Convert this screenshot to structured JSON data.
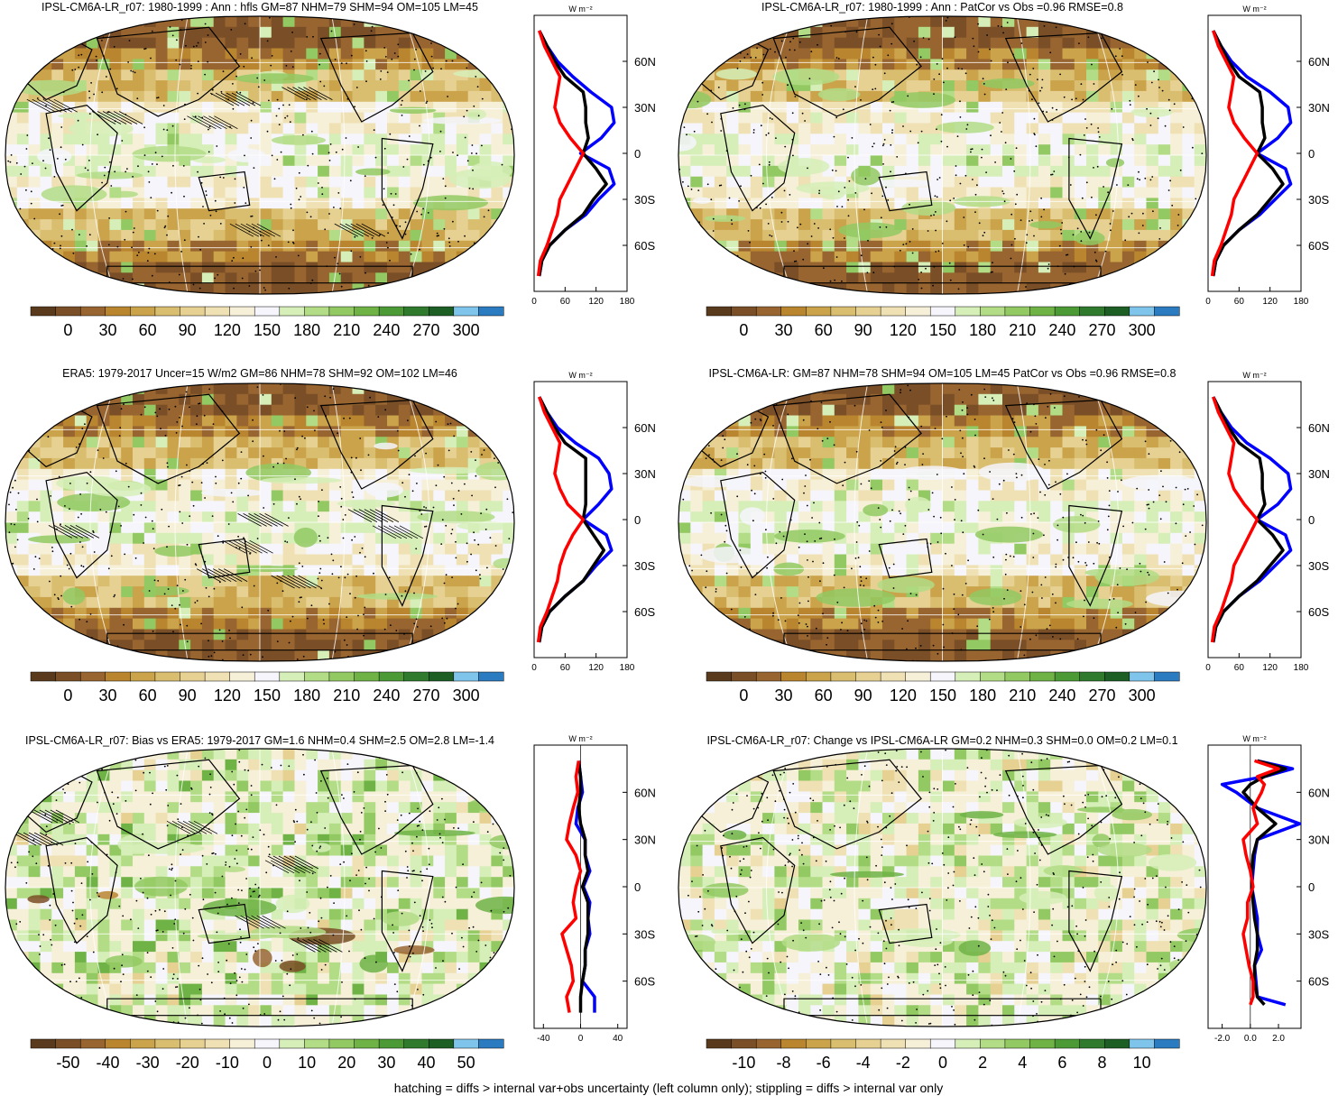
{
  "palette_main": [
    "#5a3a1c",
    "#7a4e26",
    "#986530",
    "#b9852f",
    "#caa34a",
    "#d9be70",
    "#e6d193",
    "#efe1b3",
    "#f7f0d8",
    "#f5f5fb",
    "#d6eeb8",
    "#b2dc85",
    "#92c962",
    "#6fb346",
    "#4c9a35",
    "#2f7a2c",
    "#1d5e25",
    "#7fc4ea",
    "#2b7bc0"
  ],
  "colors": {
    "nh_line": "#0000ff",
    "sh_line": "#ff0000",
    "gm_line": "#000000",
    "land_outline": "#000000",
    "grid_line": "#ffffff",
    "background": "#ffffff"
  },
  "panels": [
    {
      "title": "IPSL-CM6A-LR_r07: 1980-1999 : Ann : hfls GM=87 NHM=79 SHM=94 OM=105 LM=45",
      "colorbar": {
        "ticks": [
          "0",
          "30",
          "60",
          "90",
          "120",
          "150",
          "180",
          "210",
          "240",
          "270",
          "300"
        ]
      },
      "profile": {
        "unit": "W m⁻²",
        "xticks": [
          "0",
          "60",
          "120",
          "180"
        ],
        "xlim": [
          0,
          180
        ],
        "yticks": [
          "60N",
          "30N",
          "0",
          "30S",
          "60S"
        ]
      },
      "hatched": true,
      "mode": "abs",
      "variant": 0
    },
    {
      "title": "IPSL-CM6A-LR_r07: 1980-1999 : Ann : PatCor vs Obs =0.96 RMSE=0.8",
      "colorbar": {
        "ticks": [
          "0",
          "30",
          "60",
          "90",
          "120",
          "150",
          "180",
          "210",
          "240",
          "270",
          "300"
        ]
      },
      "profile": {
        "unit": "W m⁻²",
        "xticks": [
          "0",
          "60",
          "120",
          "180"
        ],
        "xlim": [
          0,
          180
        ],
        "yticks": [
          "60N",
          "30N",
          "0",
          "30S",
          "60S"
        ]
      },
      "hatched": false,
      "mode": "abs",
      "variant": 1
    },
    {
      "title": "ERA5: 1979-2017 Uncer=15 W/m2 GM=86 NHM=78 SHM=92 OM=102 LM=46",
      "colorbar": {
        "ticks": [
          "0",
          "30",
          "60",
          "90",
          "120",
          "150",
          "180",
          "210",
          "240",
          "270",
          "300"
        ]
      },
      "profile": {
        "unit": "W m⁻²",
        "xticks": [
          "0",
          "60",
          "120",
          "180"
        ],
        "xlim": [
          0,
          180
        ],
        "yticks": [
          "60N",
          "30N",
          "0",
          "30S",
          "60S"
        ]
      },
      "hatched": true,
      "mode": "abs",
      "variant": 2
    },
    {
      "title": "IPSL-CM6A-LR: GM=87 NHM=78 SHM=94 OM=105 LM=45 PatCor vs Obs =0.96 RMSE=0.8",
      "colorbar": {
        "ticks": [
          "0",
          "30",
          "60",
          "90",
          "120",
          "150",
          "180",
          "210",
          "240",
          "270",
          "300"
        ]
      },
      "profile": {
        "unit": "W m⁻²",
        "xticks": [
          "0",
          "60",
          "120",
          "180"
        ],
        "xlim": [
          0,
          180
        ],
        "yticks": [
          "60N",
          "30N",
          "0",
          "30S",
          "60S"
        ]
      },
      "hatched": false,
      "mode": "abs",
      "variant": 3
    },
    {
      "title": "IPSL-CM6A-LR_r07: Bias vs ERA5: 1979-2017 GM=1.6 NHM=0.4 SHM=2.5 OM=2.8 LM=-1.4",
      "colorbar": {
        "ticks": [
          "-50",
          "-40",
          "-30",
          "-20",
          "-10",
          "0",
          "10",
          "20",
          "30",
          "40",
          "50"
        ]
      },
      "profile": {
        "unit": "W m⁻²",
        "xticks": [
          "-40",
          "0",
          "40"
        ],
        "xlim": [
          -50,
          50
        ],
        "yticks": [
          "60N",
          "30N",
          "0",
          "30S",
          "60S"
        ]
      },
      "hatched": true,
      "mode": "bias",
      "variant": 4
    },
    {
      "title": "IPSL-CM6A-LR_r07: Change vs IPSL-CM6A-LR GM=0.2 NHM=0.3 SHM=0.0 OM=0.2 LM=0.1",
      "colorbar": {
        "ticks": [
          "-10",
          "-8",
          "-6",
          "-4",
          "-2",
          "0",
          "2",
          "4",
          "6",
          "8",
          "10"
        ]
      },
      "profile": {
        "unit": "W m⁻²",
        "xticks": [
          "-2.0",
          "0.0",
          "2.0"
        ],
        "xlim": [
          -3,
          3.6
        ],
        "yticks": [
          "60N",
          "30N",
          "0",
          "30S",
          "60S"
        ]
      },
      "hatched": false,
      "mode": "change",
      "variant": 5
    }
  ],
  "footer": "hatching = diffs > internal var+obs uncertainty (left column only); stippling = diffs > internal var only",
  "chart_data": [
    {
      "type": "heatmap",
      "title": "IPSL-CM6A-LR_r07: 1980-1999 : Ann : hfls GM=87 NHM=79 SHM=94 OM=105 LM=45",
      "projection": "robinson",
      "clim": [
        0,
        300
      ],
      "zonal_profile": {
        "type": "line",
        "unit": "W m-2",
        "xlim": [
          0,
          180
        ],
        "lat": [
          80,
          70,
          60,
          50,
          40,
          30,
          20,
          10,
          0,
          -10,
          -20,
          -30,
          -40,
          -50,
          -60,
          -70,
          -80
        ],
        "series": [
          {
            "values": [
              10,
              25,
              45,
              75,
              110,
              150,
              155,
              130,
              90,
              145,
              155,
              125,
              100,
              60,
              30,
              15,
              10
            ]
          },
          {
            "values": [
              10,
              25,
              40,
              60,
              95,
              100,
              100,
              105,
              95,
              120,
              140,
              115,
              95,
              60,
              30,
              15,
              10
            ]
          },
          {
            "values": [
              10,
              20,
              35,
              50,
              45,
              40,
              50,
              70,
              95,
              80,
              65,
              50,
              45,
              35,
              25,
              12,
              8
            ]
          }
        ]
      }
    },
    {
      "type": "heatmap",
      "title": "IPSL-CM6A-LR_r07: 1980-1999 : Ann : PatCor vs Obs =0.96 RMSE=0.8",
      "projection": "robinson",
      "clim": [
        0,
        300
      ],
      "zonal_profile": {
        "type": "line",
        "unit": "W m-2",
        "xlim": [
          0,
          180
        ],
        "lat": [
          80,
          70,
          60,
          50,
          40,
          30,
          20,
          10,
          0,
          -10,
          -20,
          -30,
          -40,
          -50,
          -60,
          -70,
          -80
        ],
        "series": [
          {
            "values": [
              10,
              25,
              45,
              75,
              120,
              155,
              160,
              135,
              95,
              150,
              160,
              130,
              100,
              60,
              30,
              15,
              10
            ]
          },
          {
            "values": [
              10,
              25,
              40,
              60,
              100,
              105,
              105,
              110,
              95,
              125,
              145,
              120,
              95,
              60,
              30,
              15,
              10
            ]
          },
          {
            "values": [
              10,
              20,
              35,
              50,
              45,
              40,
              50,
              70,
              95,
              80,
              65,
              50,
              45,
              35,
              25,
              12,
              8
            ]
          }
        ]
      }
    },
    {
      "type": "heatmap",
      "title": "ERA5: 1979-2017 Uncer=15 W/m2 GM=86 NHM=78 SHM=92 OM=102 LM=46",
      "projection": "robinson",
      "clim": [
        0,
        300
      ],
      "zonal_profile": {
        "type": "line",
        "unit": "W m-2",
        "xlim": [
          0,
          180
        ],
        "lat": [
          80,
          70,
          60,
          50,
          40,
          30,
          20,
          10,
          0,
          -10,
          -20,
          -30,
          -40,
          -50,
          -60,
          -70,
          -80
        ],
        "series": [
          {
            "values": [
              10,
              25,
              45,
              80,
              125,
              145,
              150,
              125,
              95,
              140,
              150,
              120,
              95,
              60,
              30,
              15,
              10
            ]
          },
          {
            "values": [
              10,
              25,
              40,
              60,
              100,
              100,
              100,
              100,
              95,
              115,
              135,
              115,
              95,
              60,
              30,
              15,
              10
            ]
          },
          {
            "values": [
              10,
              20,
              35,
              50,
              45,
              40,
              50,
              65,
              95,
              75,
              60,
              50,
              45,
              35,
              25,
              12,
              8
            ]
          }
        ]
      }
    },
    {
      "type": "heatmap",
      "title": "IPSL-CM6A-LR: GM=87 NHM=78 SHM=94 OM=105 LM=45 PatCor vs Obs =0.96 RMSE=0.8",
      "projection": "robinson",
      "clim": [
        0,
        300
      ],
      "zonal_profile": {
        "type": "line",
        "unit": "W m-2",
        "xlim": [
          0,
          180
        ],
        "lat": [
          80,
          70,
          60,
          50,
          40,
          30,
          20,
          10,
          0,
          -10,
          -20,
          -30,
          -40,
          -50,
          -60,
          -70,
          -80
        ],
        "series": [
          {
            "values": [
              10,
              25,
              45,
              75,
              120,
              155,
              160,
              135,
              95,
              150,
              160,
              130,
              100,
              60,
              30,
              15,
              10
            ]
          },
          {
            "values": [
              10,
              25,
              40,
              60,
              100,
              105,
              105,
              110,
              95,
              125,
              145,
              120,
              95,
              60,
              30,
              15,
              10
            ]
          },
          {
            "values": [
              10,
              20,
              35,
              50,
              45,
              40,
              50,
              70,
              95,
              80,
              65,
              50,
              45,
              35,
              25,
              12,
              8
            ]
          }
        ]
      }
    },
    {
      "type": "heatmap",
      "title": "IPSL-CM6A-LR_r07: Bias vs ERA5: 1979-2017 GM=1.6 NHM=0.4 SHM=2.5 OM=2.8 LM=-1.4",
      "projection": "robinson",
      "clim": [
        -50,
        50
      ],
      "zonal_profile": {
        "type": "line",
        "unit": "W m-2",
        "xlim": [
          -50,
          50
        ],
        "lat": [
          80,
          70,
          60,
          50,
          40,
          30,
          20,
          10,
          0,
          -10,
          -20,
          -30,
          -40,
          -50,
          -60,
          -70,
          -80
        ],
        "series": [
          {
            "values": [
              -2,
              0,
              2,
              -3,
              -5,
              5,
              5,
              10,
              3,
              10,
              8,
              10,
              5,
              5,
              2,
              15,
              15
            ]
          },
          {
            "values": [
              -2,
              0,
              0,
              -2,
              0,
              5,
              5,
              8,
              2,
              8,
              8,
              8,
              5,
              5,
              2,
              0,
              0
            ]
          },
          {
            "values": [
              -2,
              -5,
              -3,
              -8,
              -12,
              -15,
              -5,
              0,
              -5,
              -8,
              -5,
              -20,
              -15,
              -10,
              -8,
              -15,
              -12
            ]
          }
        ]
      }
    },
    {
      "type": "heatmap",
      "title": "IPSL-CM6A-LR_r07: Change vs IPSL-CM6A-LR GM=0.2 NHM=0.3 SHM=0.0 OM=0.2 LM=0.1",
      "projection": "robinson",
      "clim": [
        -10,
        10
      ],
      "zonal_profile": {
        "type": "line",
        "unit": "W m-2",
        "xlim": [
          -3,
          3.6
        ],
        "lat": [
          80,
          75,
          70,
          65,
          60,
          50,
          40,
          30,
          20,
          10,
          0,
          -10,
          -20,
          -30,
          -40,
          -50,
          -60,
          -70,
          -75
        ],
        "series": [
          {
            "values": [
              0.5,
              3,
              1,
              -2,
              -1,
              0.5,
              3.5,
              0.5,
              0.3,
              0.2,
              0.1,
              0.3,
              0.5,
              0.5,
              0.8,
              0.3,
              0.4,
              0.5,
              2.5
            ]
          },
          {
            "values": [
              0.5,
              2.5,
              1,
              0,
              -0.5,
              0.5,
              1.8,
              0.5,
              0.2,
              0.1,
              0.1,
              0.2,
              0.3,
              0.5,
              0.5,
              0.3,
              0.3,
              0.5,
              1
            ]
          },
          {
            "values": [
              0.3,
              2,
              0.5,
              1,
              0.8,
              0.2,
              0.5,
              -0.5,
              -0.3,
              0,
              0.2,
              -0.2,
              -0.2,
              -0.5,
              -0.3,
              -0.1,
              0.2,
              0.2,
              0
            ]
          }
        ]
      }
    }
  ]
}
